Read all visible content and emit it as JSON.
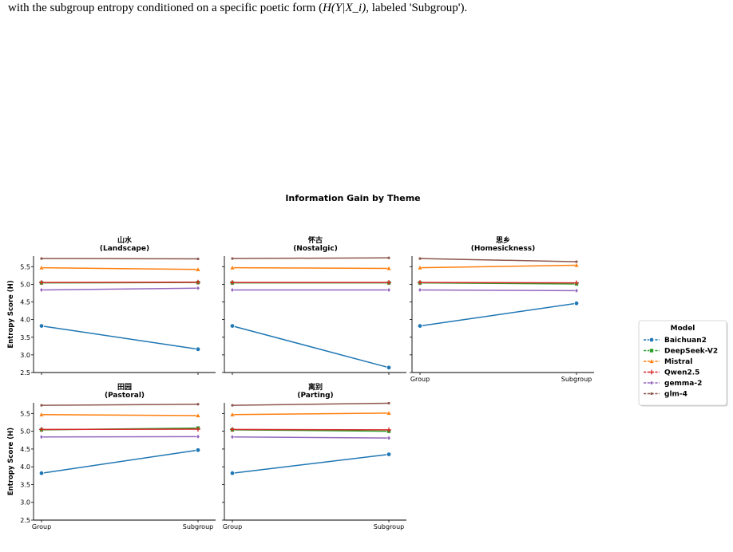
{
  "caption": {
    "prefix": "with the subgroup entropy conditioned on a specific poetic form (",
    "math": "H(Y|X_i)",
    "suffix": ", labeled 'Subgroup')."
  },
  "chart_data": {
    "type": "line",
    "title": "Information Gain by Theme",
    "ylabel": "Entropy Score (H)",
    "x": [
      "Group",
      "Subgroup"
    ],
    "ylim": [
      2.5,
      5.8
    ],
    "yticks": [
      2.5,
      3.0,
      3.5,
      4.0,
      4.5,
      5.0,
      5.5
    ],
    "grid": false,
    "legend": {
      "title": "Model",
      "placement": "right"
    },
    "series_styles": [
      {
        "name": "Baichuan2",
        "color": "#1f77b4",
        "marker": "circle"
      },
      {
        "name": "DeepSeek-V2",
        "color": "#2ca02c",
        "marker": "square"
      },
      {
        "name": "Mistral",
        "color": "#ff7f0e",
        "marker": "triangle-up"
      },
      {
        "name": "Qwen2.5",
        "color": "#d62728",
        "marker": "plus"
      },
      {
        "name": "gemma-2",
        "color": "#9467bd",
        "marker": "diamond"
      },
      {
        "name": "glm-4",
        "color": "#8c564b",
        "marker": "star"
      }
    ],
    "panels": [
      {
        "title": "山水",
        "subtitle": "(Landscape)",
        "series": [
          {
            "name": "Baichuan2",
            "values": [
              3.82,
              3.16
            ]
          },
          {
            "name": "DeepSeek-V2",
            "values": [
              5.04,
              5.05
            ]
          },
          {
            "name": "Mistral",
            "values": [
              5.47,
              5.42
            ]
          },
          {
            "name": "Qwen2.5",
            "values": [
              5.05,
              5.06
            ]
          },
          {
            "name": "gemma-2",
            "values": [
              4.84,
              4.89
            ]
          },
          {
            "name": "glm-4",
            "values": [
              5.73,
              5.72
            ]
          }
        ]
      },
      {
        "title": "怀古",
        "subtitle": "(Nostalgic)",
        "series": [
          {
            "name": "Baichuan2",
            "values": [
              3.82,
              2.64
            ]
          },
          {
            "name": "DeepSeek-V2",
            "values": [
              5.04,
              5.04
            ]
          },
          {
            "name": "Mistral",
            "values": [
              5.47,
              5.45
            ]
          },
          {
            "name": "Qwen2.5",
            "values": [
              5.05,
              5.05
            ]
          },
          {
            "name": "gemma-2",
            "values": [
              4.84,
              4.84
            ]
          },
          {
            "name": "glm-4",
            "values": [
              5.73,
              5.75
            ]
          }
        ]
      },
      {
        "title": "思乡",
        "subtitle": "(Homesickness)",
        "series": [
          {
            "name": "Baichuan2",
            "values": [
              3.82,
              4.46
            ]
          },
          {
            "name": "DeepSeek-V2",
            "values": [
              5.04,
              5.01
            ]
          },
          {
            "name": "Mistral",
            "values": [
              5.47,
              5.54
            ]
          },
          {
            "name": "Qwen2.5",
            "values": [
              5.05,
              5.04
            ]
          },
          {
            "name": "gemma-2",
            "values": [
              4.84,
              4.82
            ]
          },
          {
            "name": "glm-4",
            "values": [
              5.73,
              5.64
            ]
          }
        ]
      },
      {
        "title": "田园",
        "subtitle": "(Pastoral)",
        "series": [
          {
            "name": "Baichuan2",
            "values": [
              3.82,
              4.47
            ]
          },
          {
            "name": "DeepSeek-V2",
            "values": [
              5.04,
              5.09
            ]
          },
          {
            "name": "Mistral",
            "values": [
              5.47,
              5.44
            ]
          },
          {
            "name": "Qwen2.5",
            "values": [
              5.05,
              5.06
            ]
          },
          {
            "name": "gemma-2",
            "values": [
              4.84,
              4.85
            ]
          },
          {
            "name": "glm-4",
            "values": [
              5.73,
              5.76
            ]
          }
        ]
      },
      {
        "title": "离别",
        "subtitle": "(Parting)",
        "series": [
          {
            "name": "Baichuan2",
            "values": [
              3.82,
              4.35
            ]
          },
          {
            "name": "DeepSeek-V2",
            "values": [
              5.04,
              5.0
            ]
          },
          {
            "name": "Mistral",
            "values": [
              5.47,
              5.51
            ]
          },
          {
            "name": "Qwen2.5",
            "values": [
              5.05,
              5.04
            ]
          },
          {
            "name": "gemma-2",
            "values": [
              4.84,
              4.81
            ]
          },
          {
            "name": "glm-4",
            "values": [
              5.73,
              5.79
            ]
          }
        ]
      }
    ]
  }
}
